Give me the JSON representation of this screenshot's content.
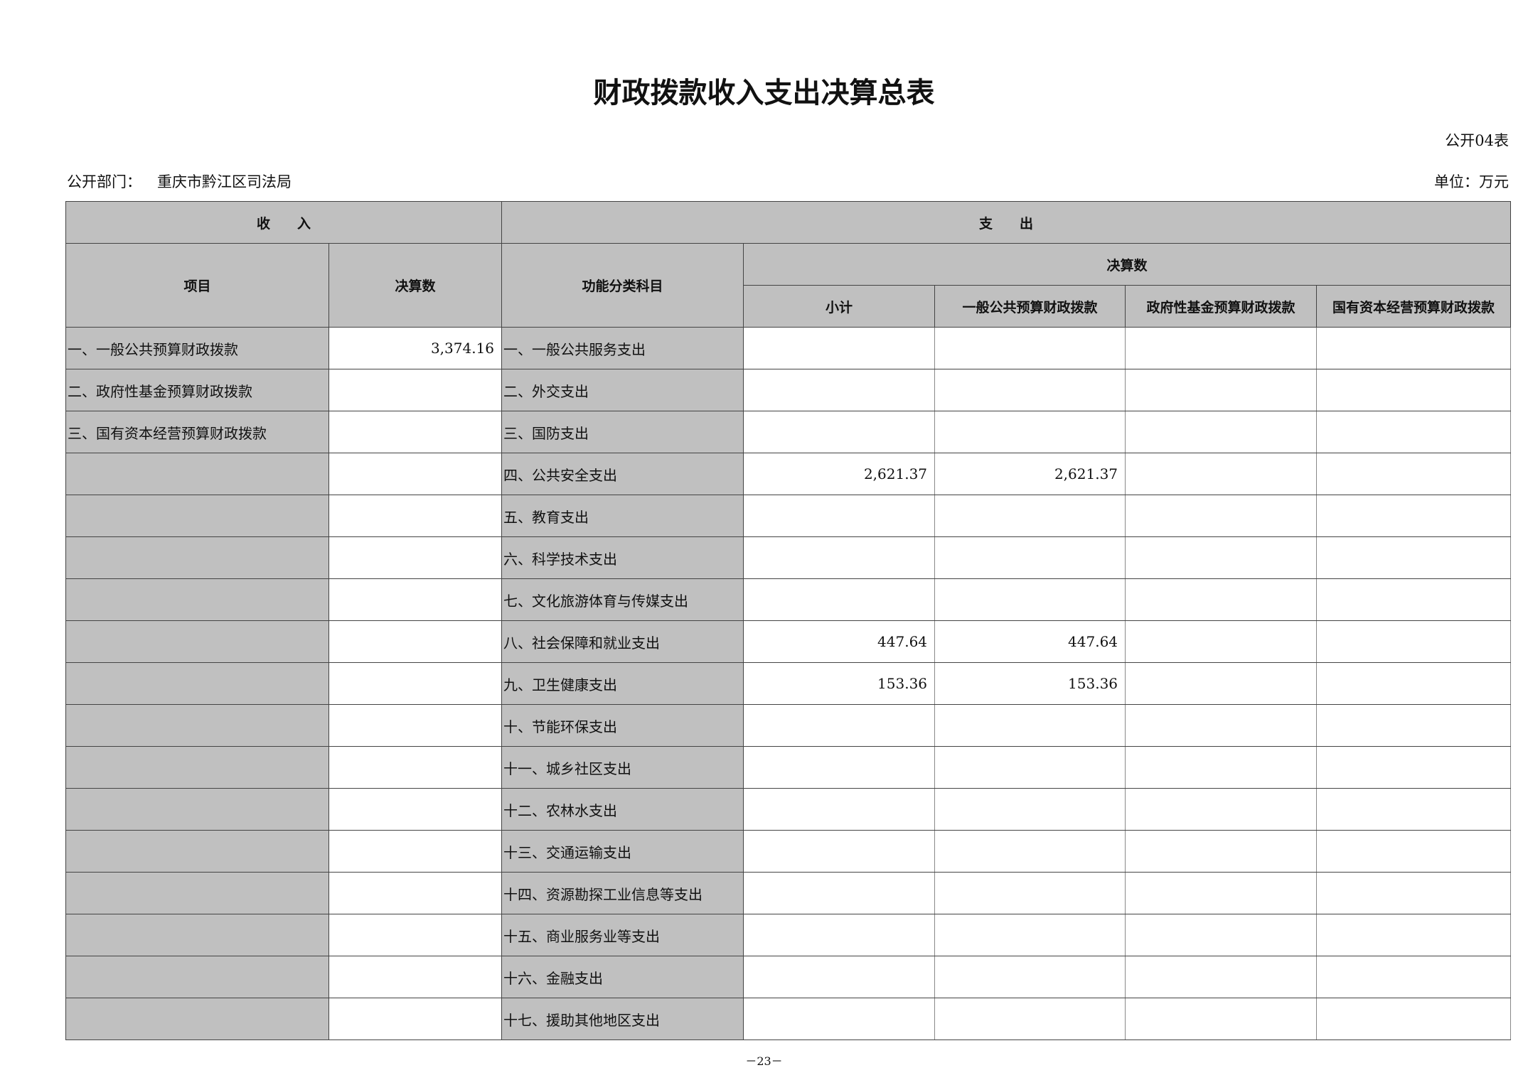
{
  "title": "财政拨款收入支出决算总表",
  "table_no": "公开04表",
  "department_label": "公开部门：",
  "department": "重庆市黔江区司法局",
  "unit": "单位：万元",
  "headers": {
    "income": "收　　入",
    "expense": "支　　出",
    "item": "项目",
    "amount": "决算数",
    "function_category": "功能分类科目",
    "final_amount": "决算数",
    "subtotal": "小计",
    "general_public": "一般公共预算财政拨款",
    "government_fund": "政府性基金预算财政拨款",
    "state_capital": "国有资本经营预算财政拨款"
  },
  "rows": [
    {
      "income_item": "一、一般公共预算财政拨款",
      "income_amount": "3,374.16",
      "category": "一、一般公共服务支出",
      "subtotal": "",
      "general": "",
      "fund": "",
      "capital": ""
    },
    {
      "income_item": "二、政府性基金预算财政拨款",
      "income_amount": "",
      "category": "二、外交支出",
      "subtotal": "",
      "general": "",
      "fund": "",
      "capital": ""
    },
    {
      "income_item": "三、国有资本经营预算财政拨款",
      "income_amount": "",
      "category": "三、国防支出",
      "subtotal": "",
      "general": "",
      "fund": "",
      "capital": ""
    },
    {
      "income_item": "",
      "income_amount": "",
      "category": "四、公共安全支出",
      "subtotal": "2,621.37",
      "general": "2,621.37",
      "fund": "",
      "capital": ""
    },
    {
      "income_item": "",
      "income_amount": "",
      "category": "五、教育支出",
      "subtotal": "",
      "general": "",
      "fund": "",
      "capital": ""
    },
    {
      "income_item": "",
      "income_amount": "",
      "category": "六、科学技术支出",
      "subtotal": "",
      "general": "",
      "fund": "",
      "capital": ""
    },
    {
      "income_item": "",
      "income_amount": "",
      "category": "七、文化旅游体育与传媒支出",
      "subtotal": "",
      "general": "",
      "fund": "",
      "capital": ""
    },
    {
      "income_item": "",
      "income_amount": "",
      "category": "八、社会保障和就业支出",
      "subtotal": "447.64",
      "general": "447.64",
      "fund": "",
      "capital": ""
    },
    {
      "income_item": "",
      "income_amount": "",
      "category": "九、卫生健康支出",
      "subtotal": "153.36",
      "general": "153.36",
      "fund": "",
      "capital": ""
    },
    {
      "income_item": "",
      "income_amount": "",
      "category": "十、节能环保支出",
      "subtotal": "",
      "general": "",
      "fund": "",
      "capital": ""
    },
    {
      "income_item": "",
      "income_amount": "",
      "category": "十一、城乡社区支出",
      "subtotal": "",
      "general": "",
      "fund": "",
      "capital": ""
    },
    {
      "income_item": "",
      "income_amount": "",
      "category": "十二、农林水支出",
      "subtotal": "",
      "general": "",
      "fund": "",
      "capital": ""
    },
    {
      "income_item": "",
      "income_amount": "",
      "category": "十三、交通运输支出",
      "subtotal": "",
      "general": "",
      "fund": "",
      "capital": ""
    },
    {
      "income_item": "",
      "income_amount": "",
      "category": "十四、资源勘探工业信息等支出",
      "subtotal": "",
      "general": "",
      "fund": "",
      "capital": ""
    },
    {
      "income_item": "",
      "income_amount": "",
      "category": "十五、商业服务业等支出",
      "subtotal": "",
      "general": "",
      "fund": "",
      "capital": ""
    },
    {
      "income_item": "",
      "income_amount": "",
      "category": "十六、金融支出",
      "subtotal": "",
      "general": "",
      "fund": "",
      "capital": ""
    },
    {
      "income_item": "",
      "income_amount": "",
      "category": "十七、援助其他地区支出",
      "subtotal": "",
      "general": "",
      "fund": "",
      "capital": ""
    }
  ],
  "page_number": "－23－",
  "colors": {
    "header_fill": "#c0c0c0",
    "border": "#444444"
  }
}
